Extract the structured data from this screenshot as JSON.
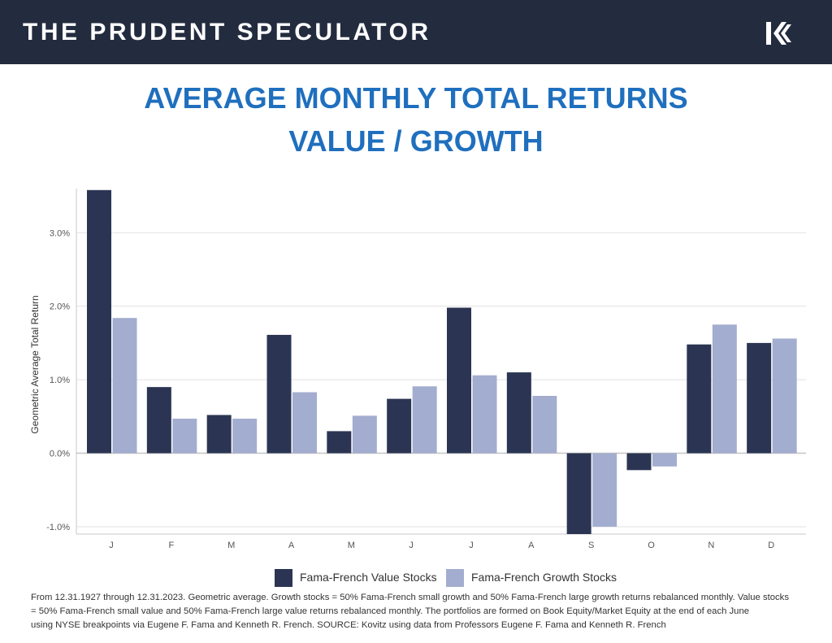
{
  "header": {
    "brand": "THE PRUDENT SPECULATOR",
    "logo_icon": "k-logo-icon",
    "background": "#232b3f"
  },
  "title": {
    "line1": "AVERAGE MONTHLY TOTAL RETURNS",
    "line2": "VALUE / GROWTH",
    "color": "#1f6fbe"
  },
  "chart_data": {
    "type": "bar",
    "title": "",
    "xlabel": "",
    "ylabel": "Geometric Average Total Return",
    "categories": [
      "J",
      "F",
      "M",
      "A",
      "M",
      "J",
      "J",
      "A",
      "S",
      "O",
      "N",
      "D"
    ],
    "series": [
      {
        "name": "Fama-French Value Stocks",
        "color": "#2b3553",
        "values": [
          3.58,
          0.9,
          0.52,
          1.61,
          0.3,
          0.74,
          1.98,
          1.1,
          -1.1,
          -0.23,
          1.48,
          1.5
        ]
      },
      {
        "name": "Fama-French Growth Stocks",
        "color": "#a3adcf",
        "values": [
          1.84,
          0.47,
          0.47,
          0.83,
          0.51,
          0.91,
          1.06,
          0.78,
          -1.0,
          -0.18,
          1.75,
          1.56
        ]
      }
    ],
    "ylim": [
      -1.1,
      3.6
    ],
    "yticks": [
      -1.0,
      0.0,
      1.0,
      2.0,
      3.0
    ],
    "ytick_labels": [
      "-1.0%",
      "0.0%",
      "1.0%",
      "2.0%",
      "3.0%"
    ],
    "grid": true,
    "legend_position": "bottom"
  },
  "footnote": {
    "line1": "From 12.31.1927 through 12.31.2023. Geometric average. Growth stocks = 50% Fama-French small growth and 50% Fama-French large growth returns rebalanced monthly. Value stocks",
    "line2": "= 50% Fama-French small value and 50% Fama-French large value returns rebalanced monthly. The portfolios are formed on Book Equity/Market Equity at the end of each June",
    "line3": "using NYSE breakpoints via Eugene F. Fama and Kenneth R. French. SOURCE: Kovitz using data from Professors Eugene F. Fama and Kenneth R. French"
  }
}
